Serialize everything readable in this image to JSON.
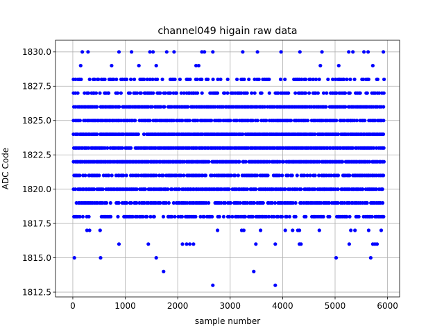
{
  "chart_data": {
    "type": "scatter",
    "title": "channel049 higain raw data",
    "xlabel": "sample number",
    "ylabel": "ADC Code",
    "xlim": [
      -330,
      6230
    ],
    "ylim": [
      1812.15,
      1830.85
    ],
    "xticks": [
      0,
      1000,
      2000,
      3000,
      4000,
      5000,
      6000
    ],
    "xtick_labels": [
      "0",
      "1000",
      "2000",
      "3000",
      "4000",
      "5000",
      "6000"
    ],
    "yticks": [
      1812.5,
      1815.0,
      1817.5,
      1820.0,
      1822.5,
      1825.0,
      1827.5,
      1830.0
    ],
    "ytick_labels": [
      "1812.5",
      "1815.0",
      "1817.5",
      "1820.0",
      "1822.5",
      "1825.0",
      "1827.5",
      "1830.0"
    ],
    "grid": true,
    "marker_color": "#0000ff",
    "series": [
      {
        "sample_count": 6000,
        "dense_levels": [
          1818,
          1819,
          1820,
          1821,
          1822,
          1823,
          1824,
          1825,
          1826,
          1827,
          1828
        ],
        "points": [
          [
            30,
            1815
          ],
          [
            530,
            1815
          ],
          [
            1590,
            1815
          ],
          [
            5020,
            1815
          ],
          [
            5680,
            1815
          ],
          [
            880,
            1816
          ],
          [
            1440,
            1816
          ],
          [
            2090,
            1816
          ],
          [
            2170,
            1816
          ],
          [
            2230,
            1816
          ],
          [
            2300,
            1816
          ],
          [
            3490,
            1816
          ],
          [
            3860,
            1816
          ],
          [
            4320,
            1816
          ],
          [
            4350,
            1816
          ],
          [
            5270,
            1816
          ],
          [
            5720,
            1816
          ],
          [
            5760,
            1816
          ],
          [
            5800,
            1816
          ],
          [
            1730,
            1814
          ],
          [
            3450,
            1814
          ],
          [
            2670,
            1813
          ],
          [
            3860,
            1813
          ],
          [
            270,
            1817
          ],
          [
            320,
            1817
          ],
          [
            520,
            1817
          ],
          [
            2760,
            1817
          ],
          [
            3220,
            1817
          ],
          [
            3260,
            1817
          ],
          [
            3580,
            1817
          ],
          [
            4050,
            1817
          ],
          [
            4190,
            1817
          ],
          [
            4290,
            1817
          ],
          [
            4320,
            1817
          ],
          [
            4700,
            1817
          ],
          [
            5300,
            1817
          ],
          [
            5380,
            1817
          ],
          [
            5640,
            1817
          ],
          [
            5880,
            1817
          ],
          [
            180,
            1830
          ],
          [
            290,
            1830
          ],
          [
            880,
            1830
          ],
          [
            1120,
            1830
          ],
          [
            1470,
            1830
          ],
          [
            1530,
            1830
          ],
          [
            1790,
            1830
          ],
          [
            1930,
            1830
          ],
          [
            2460,
            1830
          ],
          [
            2510,
            1830
          ],
          [
            2670,
            1830
          ],
          [
            3240,
            1830
          ],
          [
            3520,
            1830
          ],
          [
            3970,
            1830
          ],
          [
            4330,
            1830
          ],
          [
            4750,
            1830
          ],
          [
            5260,
            1830
          ],
          [
            5340,
            1830
          ],
          [
            5550,
            1830
          ],
          [
            5630,
            1830
          ],
          [
            5920,
            1830
          ],
          [
            150,
            1829
          ],
          [
            740,
            1829
          ],
          [
            1260,
            1829
          ],
          [
            1590,
            1829
          ],
          [
            2350,
            1829
          ],
          [
            2400,
            1829
          ],
          [
            4720,
            1829
          ],
          [
            5070,
            1829
          ],
          [
            5720,
            1829
          ]
        ]
      }
    ]
  }
}
